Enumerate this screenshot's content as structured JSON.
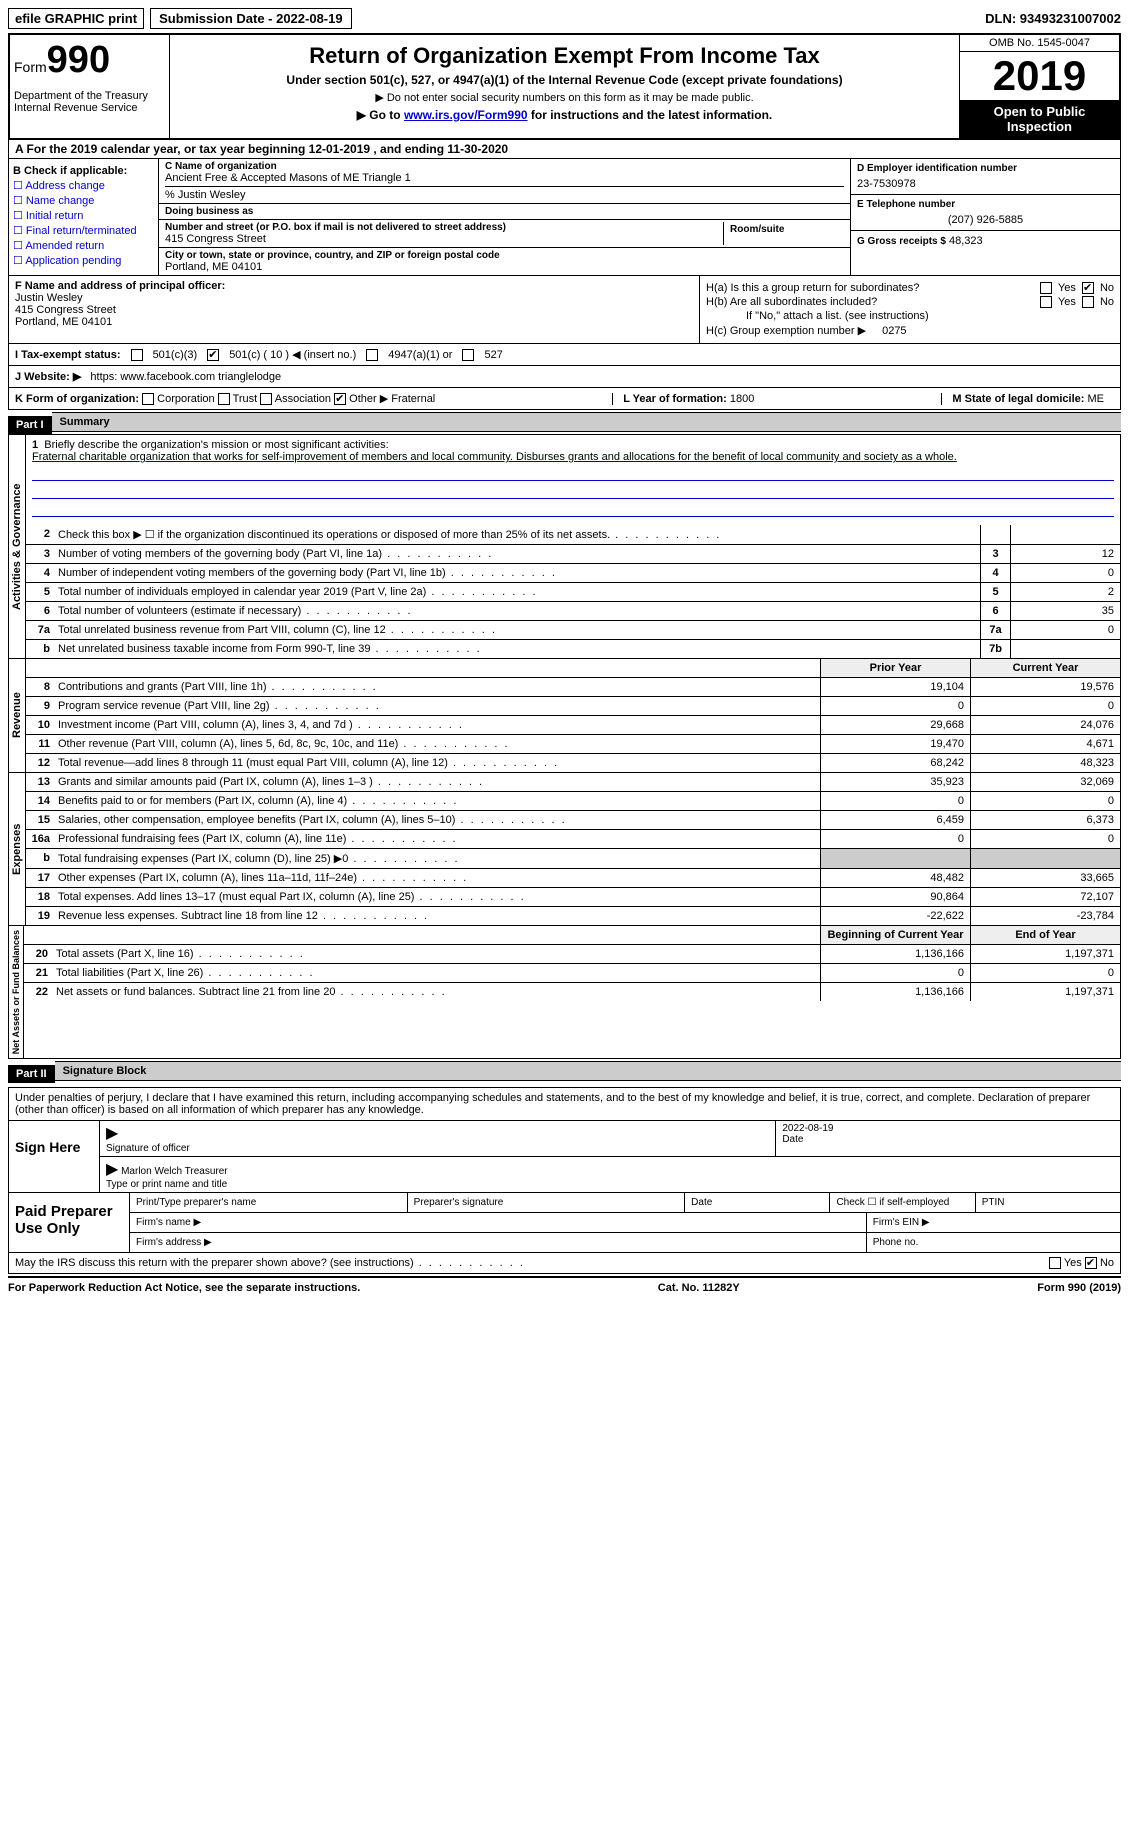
{
  "top": {
    "efile": "efile GRAPHIC print",
    "submission": "Submission Date - 2022-08-19",
    "dln": "DLN: 93493231007002"
  },
  "header": {
    "form_prefix": "Form",
    "form_number": "990",
    "dept": "Department of the Treasury\nInternal Revenue Service",
    "title": "Return of Organization Exempt From Income Tax",
    "subtitle": "Under section 501(c), 527, or 4947(a)(1) of the Internal Revenue Code (except private foundations)",
    "note1": "▶ Do not enter social security numbers on this form as it may be made public.",
    "goto_pre": "▶ Go to ",
    "goto_link": "www.irs.gov/Form990",
    "goto_post": " for instructions and the latest information.",
    "omb": "OMB No. 1545-0047",
    "year": "2019",
    "open": "Open to Public Inspection"
  },
  "period": "A For the 2019 calendar year, or tax year beginning 12-01-2019     , and ending 11-30-2020",
  "sectionB": {
    "label": "B Check if applicable:",
    "opts": [
      "Address change",
      "Name change",
      "Initial return",
      "Final return/terminated",
      "Amended return",
      "Application pending"
    ]
  },
  "sectionC": {
    "name_lbl": "C Name of organization",
    "name": "Ancient Free & Accepted Masons of ME Triangle 1",
    "care_of": "% Justin Wesley",
    "dba_lbl": "Doing business as",
    "addr_lbl": "Number and street (or P.O. box if mail is not delivered to street address)",
    "room_lbl": "Room/suite",
    "addr": "415 Congress Street",
    "city_lbl": "City or town, state or province, country, and ZIP or foreign postal code",
    "city": "Portland, ME  04101"
  },
  "sectionD": {
    "lbl": "D Employer identification number",
    "val": "23-7530978"
  },
  "sectionE": {
    "lbl": "E Telephone number",
    "val": "(207) 926-5885"
  },
  "sectionG": {
    "lbl": "G Gross receipts $",
    "val": "48,323"
  },
  "sectionF": {
    "lbl": "F  Name and address of principal officer:",
    "name": "Justin Wesley",
    "addr1": "415 Congress Street",
    "addr2": "Portland, ME  04101"
  },
  "sectionH": {
    "a": "H(a)  Is this a group return for subordinates?",
    "a_yes": "Yes",
    "a_no": "No",
    "b": "H(b)  Are all subordinates included?",
    "b_yes": "Yes",
    "b_no": "No",
    "b_note": "If \"No,\" attach a list. (see instructions)",
    "c": "H(c)  Group exemption number ▶",
    "c_val": "0275"
  },
  "sectionI": {
    "lbl": "I   Tax-exempt status:",
    "o1": "501(c)(3)",
    "o2": "501(c) ( 10 ) ◀ (insert no.)",
    "o3": "4947(a)(1) or",
    "o4": "527"
  },
  "sectionJ": {
    "lbl": "J   Website: ▶",
    "val": "https: www.facebook.com trianglelodge"
  },
  "sectionK": {
    "lbl": "K Form of organization:",
    "o1": "Corporation",
    "o2": "Trust",
    "o3": "Association",
    "o4": "Other ▶",
    "o4v": "Fraternal"
  },
  "sectionL": {
    "lbl": "L Year of formation:",
    "val": "1800"
  },
  "sectionM": {
    "lbl": "M State of legal domicile:",
    "val": "ME"
  },
  "part1": {
    "num": "Part I",
    "title": "Summary"
  },
  "mission": {
    "q": "Briefly describe the organization's mission or most significant activities:",
    "text": "Fraternal charitable organization that works for self-improvement of members and local community. Disburses grants and allocations for the benefit of local community and society as a whole."
  },
  "lines_gov": [
    {
      "n": "2",
      "t": "Check this box ▶ ☐ if the organization discontinued its operations or disposed of more than 25% of its net assets.",
      "box": "",
      "val": ""
    },
    {
      "n": "3",
      "t": "Number of voting members of the governing body (Part VI, line 1a)",
      "box": "3",
      "val": "12"
    },
    {
      "n": "4",
      "t": "Number of independent voting members of the governing body (Part VI, line 1b)",
      "box": "4",
      "val": "0"
    },
    {
      "n": "5",
      "t": "Total number of individuals employed in calendar year 2019 (Part V, line 2a)",
      "box": "5",
      "val": "2"
    },
    {
      "n": "6",
      "t": "Total number of volunteers (estimate if necessary)",
      "box": "6",
      "val": "35"
    },
    {
      "n": "7a",
      "t": "Total unrelated business revenue from Part VIII, column (C), line 12",
      "box": "7a",
      "val": "0"
    },
    {
      "n": "b",
      "t": "Net unrelated business taxable income from Form 990-T, line 39",
      "box": "7b",
      "val": ""
    }
  ],
  "col_headers": {
    "prior": "Prior Year",
    "curr": "Current Year"
  },
  "lines_rev": [
    {
      "n": "8",
      "t": "Contributions and grants (Part VIII, line 1h)",
      "p": "19,104",
      "c": "19,576"
    },
    {
      "n": "9",
      "t": "Program service revenue (Part VIII, line 2g)",
      "p": "0",
      "c": "0"
    },
    {
      "n": "10",
      "t": "Investment income (Part VIII, column (A), lines 3, 4, and 7d )",
      "p": "29,668",
      "c": "24,076"
    },
    {
      "n": "11",
      "t": "Other revenue (Part VIII, column (A), lines 5, 6d, 8c, 9c, 10c, and 11e)",
      "p": "19,470",
      "c": "4,671"
    },
    {
      "n": "12",
      "t": "Total revenue—add lines 8 through 11 (must equal Part VIII, column (A), line 12)",
      "p": "68,242",
      "c": "48,323"
    }
  ],
  "lines_exp": [
    {
      "n": "13",
      "t": "Grants and similar amounts paid (Part IX, column (A), lines 1–3 )",
      "p": "35,923",
      "c": "32,069"
    },
    {
      "n": "14",
      "t": "Benefits paid to or for members (Part IX, column (A), line 4)",
      "p": "0",
      "c": "0"
    },
    {
      "n": "15",
      "t": "Salaries, other compensation, employee benefits (Part IX, column (A), lines 5–10)",
      "p": "6,459",
      "c": "6,373"
    },
    {
      "n": "16a",
      "t": "Professional fundraising fees (Part IX, column (A), line 11e)",
      "p": "0",
      "c": "0"
    },
    {
      "n": "b",
      "t": "Total fundraising expenses (Part IX, column (D), line 25) ▶0",
      "p": "",
      "c": "",
      "grey": true
    },
    {
      "n": "17",
      "t": "Other expenses (Part IX, column (A), lines 11a–11d, 11f–24e)",
      "p": "48,482",
      "c": "33,665"
    },
    {
      "n": "18",
      "t": "Total expenses. Add lines 13–17 (must equal Part IX, column (A), line 25)",
      "p": "90,864",
      "c": "72,107"
    },
    {
      "n": "19",
      "t": "Revenue less expenses. Subtract line 18 from line 12",
      "p": "-22,622",
      "c": "-23,784"
    }
  ],
  "col_headers2": {
    "prior": "Beginning of Current Year",
    "curr": "End of Year"
  },
  "lines_net": [
    {
      "n": "20",
      "t": "Total assets (Part X, line 16)",
      "p": "1,136,166",
      "c": "1,197,371"
    },
    {
      "n": "21",
      "t": "Total liabilities (Part X, line 26)",
      "p": "0",
      "c": "0"
    },
    {
      "n": "22",
      "t": "Net assets or fund balances. Subtract line 21 from line 20",
      "p": "1,136,166",
      "c": "1,197,371"
    }
  ],
  "vtabs": {
    "gov": "Activities & Governance",
    "rev": "Revenue",
    "exp": "Expenses",
    "net": "Net Assets or Fund Balances"
  },
  "part2": {
    "num": "Part II",
    "title": "Signature Block"
  },
  "decl": "Under penalties of perjury, I declare that I have examined this return, including accompanying schedules and statements, and to the best of my knowledge and belief, it is true, correct, and complete. Declaration of preparer (other than officer) is based on all information of which preparer has any knowledge.",
  "sign": {
    "here": "Sign Here",
    "sig_lbl": "Signature of officer",
    "date_lbl": "Date",
    "date_val": "2022-08-19",
    "name": "Marlon Welch Treasurer",
    "name_lbl": "Type or print name and title"
  },
  "prep": {
    "label": "Paid Preparer Use Only",
    "r1": [
      "Print/Type preparer's name",
      "Preparer's signature",
      "Date",
      "Check ☐ if self-employed",
      "PTIN"
    ],
    "r2_l": "Firm's name  ▶",
    "r2_r": "Firm's EIN ▶",
    "r3_l": "Firm's address ▶",
    "r3_r": "Phone no."
  },
  "footer": {
    "discuss": "May the IRS discuss this return with the preparer shown above? (see instructions)",
    "yes": "Yes",
    "no": "No",
    "paperwork": "For Paperwork Reduction Act Notice, see the separate instructions.",
    "cat": "Cat. No. 11282Y",
    "form": "Form 990 (2019)"
  },
  "colors": {
    "link": "#0000cc",
    "black": "#000000",
    "grey": "#cccccc"
  }
}
